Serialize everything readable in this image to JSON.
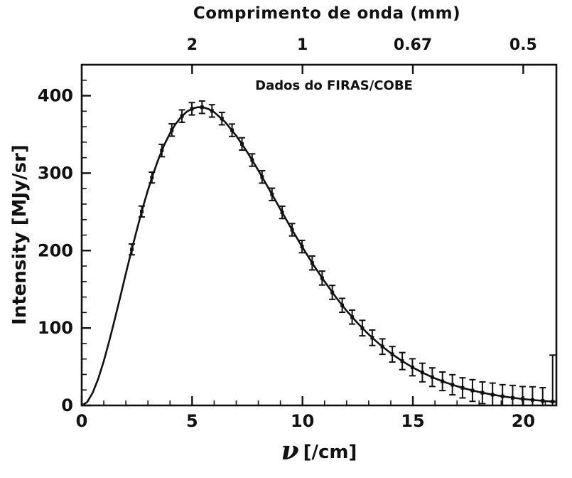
{
  "page": {
    "background": "#ffffff",
    "ink_color": "#111111"
  },
  "chart_data": {
    "type": "line",
    "annotation": "Dados do FIRAS/COBE",
    "xlabel_nu": "ν",
    "xlabel_unit": "[/cm]",
    "ylabel": "Intensity [MJy/sr]",
    "xlim": [
      0,
      21.5
    ],
    "ylim": [
      0,
      440
    ],
    "xticks": [
      0,
      5,
      10,
      15,
      20
    ],
    "yticks": [
      0,
      100,
      200,
      300,
      400
    ],
    "x_minor_step": 1,
    "y_minor_step": 20,
    "top_axis": {
      "label": "Comprimento de onda (mm)",
      "ticks": [
        {
          "x": 5,
          "label": "2"
        },
        {
          "x": 10,
          "label": "1"
        },
        {
          "x": 15,
          "label": "0.67"
        },
        {
          "x": 20,
          "label": "0.5"
        }
      ]
    },
    "line_color": "#111111",
    "curve": [
      [
        0,
        0
      ],
      [
        0.25,
        4.4
      ],
      [
        0.5,
        16.5
      ],
      [
        0.75,
        34.6
      ],
      [
        1,
        57.4
      ],
      [
        1.25,
        83.4
      ],
      [
        1.5,
        111.5
      ],
      [
        1.75,
        140.8
      ],
      [
        2,
        170.3
      ],
      [
        2.25,
        199.3
      ],
      [
        2.5,
        227.2
      ],
      [
        2.75,
        253.7
      ],
      [
        3,
        278.1
      ],
      [
        3.25,
        300.2
      ],
      [
        3.5,
        319.9
      ],
      [
        3.75,
        337.1
      ],
      [
        4,
        351.5
      ],
      [
        4.25,
        363.3
      ],
      [
        4.5,
        372.5
      ],
      [
        4.75,
        379.1
      ],
      [
        5,
        383.3
      ],
      [
        5.25,
        385.2
      ],
      [
        5.5,
        385.1
      ],
      [
        5.75,
        382.7
      ],
      [
        6,
        378.7
      ],
      [
        6.5,
        365.9
      ],
      [
        7,
        348.2
      ],
      [
        7.5,
        327.1
      ],
      [
        8,
        303.5
      ],
      [
        8.5,
        278.6
      ],
      [
        9,
        253.4
      ],
      [
        9.5,
        228.2
      ],
      [
        10,
        204.2
      ],
      [
        10.5,
        181.3
      ],
      [
        11,
        160.0
      ],
      [
        11.5,
        140.3
      ],
      [
        12,
        122.3
      ],
      [
        12.5,
        106.2
      ],
      [
        13,
        91.7
      ],
      [
        13.5,
        78.8
      ],
      [
        14,
        67.5
      ],
      [
        14.5,
        57.6
      ],
      [
        15,
        49.0
      ],
      [
        15.5,
        41.5
      ],
      [
        16,
        35.0
      ],
      [
        16.5,
        29.5
      ],
      [
        17,
        24.8
      ],
      [
        17.5,
        20.8
      ],
      [
        18,
        17.4
      ],
      [
        18.5,
        14.5
      ],
      [
        19,
        12.0
      ],
      [
        19.5,
        10.0
      ],
      [
        20,
        8.3
      ],
      [
        20.5,
        6.9
      ],
      [
        21,
        5.7
      ],
      [
        21.5,
        4.7
      ]
    ],
    "points": [
      [
        2.27,
        201.5,
        7
      ],
      [
        2.72,
        250.5,
        7
      ],
      [
        3.18,
        294.3,
        7
      ],
      [
        3.63,
        329.2,
        8
      ],
      [
        4.08,
        355.7,
        8
      ],
      [
        4.54,
        373.7,
        8
      ],
      [
        4.99,
        383.1,
        8
      ],
      [
        5.45,
        385.1,
        8
      ],
      [
        5.9,
        380.4,
        8
      ],
      [
        6.35,
        370.4,
        8
      ],
      [
        6.81,
        355.4,
        8
      ],
      [
        7.26,
        337.7,
        8
      ],
      [
        7.72,
        316.9,
        8
      ],
      [
        8.17,
        295.1,
        8
      ],
      [
        8.62,
        272.6,
        8
      ],
      [
        9.08,
        249.3,
        8
      ],
      [
        9.53,
        226.9,
        8
      ],
      [
        9.98,
        205.2,
        8
      ],
      [
        10.44,
        184.0,
        9
      ],
      [
        10.89,
        164.5,
        9
      ],
      [
        11.35,
        146.0,
        9
      ],
      [
        11.8,
        129.3,
        9
      ],
      [
        12.25,
        114.1,
        9
      ],
      [
        12.71,
        99.9,
        10
      ],
      [
        13.16,
        87.4,
        10
      ],
      [
        13.62,
        76.0,
        10
      ],
      [
        14.07,
        66.1,
        10
      ],
      [
        14.52,
        57.3,
        11
      ],
      [
        14.98,
        49.3,
        11
      ],
      [
        15.43,
        42.5,
        12
      ],
      [
        15.88,
        36.5,
        12
      ],
      [
        16.34,
        31.2,
        12
      ],
      [
        16.79,
        26.7,
        13
      ],
      [
        17.25,
        22.7,
        13
      ],
      [
        17.7,
        19.3,
        14
      ],
      [
        18.15,
        16.4,
        14
      ],
      [
        18.61,
        13.9,
        15
      ],
      [
        19.06,
        11.8,
        15
      ],
      [
        19.52,
        9.9,
        16
      ],
      [
        19.97,
        8.4,
        16
      ],
      [
        20.42,
        7.1,
        17
      ],
      [
        20.88,
        5.9,
        17
      ],
      [
        21.33,
        5.0,
        60
      ]
    ]
  }
}
